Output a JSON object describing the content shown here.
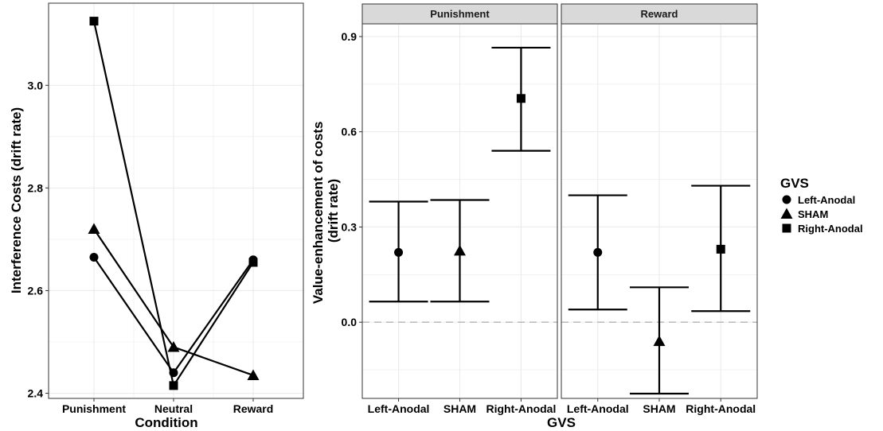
{
  "chart_data": [
    {
      "type": "line",
      "title": "",
      "xlabel": "Condition",
      "ylabel": "Interference Costs (drift rate)",
      "categories": [
        "Punishment",
        "Neutral",
        "Reward"
      ],
      "ylim": [
        2.39,
        3.16
      ],
      "yticks": [
        2.4,
        2.6,
        2.8,
        3.0
      ],
      "ytick_labels": [
        "2.4",
        "2.6",
        "2.8",
        "3.0"
      ],
      "grid": true,
      "series": [
        {
          "name": "Left-Anodal",
          "marker": "circle",
          "values": [
            2.665,
            2.44,
            2.66
          ]
        },
        {
          "name": "SHAM",
          "marker": "triangle",
          "values": [
            2.72,
            2.49,
            2.435
          ]
        },
        {
          "name": "Right-Anodal",
          "marker": "square",
          "values": [
            3.125,
            2.415,
            2.655
          ]
        }
      ]
    },
    {
      "type": "errorbar",
      "title": "",
      "xlabel": "GVS",
      "ylabel": "Value-enhancement of costs (drift rate)",
      "ylim": [
        -0.24,
        0.94
      ],
      "yticks": [
        0.0,
        0.3,
        0.6,
        0.9
      ],
      "ytick_labels": [
        "0.0",
        "0.3",
        "0.6",
        "0.9"
      ],
      "reference_line": 0.0,
      "grid": true,
      "categories": [
        "Left-Anodal",
        "SHAM",
        "Right-Anodal"
      ],
      "panels": [
        {
          "name": "Punishment",
          "points": [
            {
              "x": "Left-Anodal",
              "marker": "circle",
              "y": 0.22,
              "lower": 0.065,
              "upper": 0.38
            },
            {
              "x": "SHAM",
              "marker": "triangle",
              "y": 0.225,
              "lower": 0.065,
              "upper": 0.385
            },
            {
              "x": "Right-Anodal",
              "marker": "square",
              "y": 0.705,
              "lower": 0.54,
              "upper": 0.865
            }
          ]
        },
        {
          "name": "Reward",
          "points": [
            {
              "x": "Left-Anodal",
              "marker": "circle",
              "y": 0.22,
              "lower": 0.04,
              "upper": 0.4
            },
            {
              "x": "SHAM",
              "marker": "triangle",
              "y": -0.06,
              "lower": -0.225,
              "upper": 0.11
            },
            {
              "x": "Right-Anodal",
              "marker": "square",
              "y": 0.23,
              "lower": 0.035,
              "upper": 0.43
            }
          ]
        }
      ]
    }
  ],
  "legend": {
    "title": "GVS",
    "placement": "right",
    "items": [
      {
        "label": "Left-Anodal",
        "marker": "circle"
      },
      {
        "label": "SHAM",
        "marker": "triangle"
      },
      {
        "label": "Right-Anodal",
        "marker": "square"
      }
    ]
  },
  "colors": {
    "ink": "#000000",
    "panel_border": "#333333",
    "grid": "#ebebeb",
    "strip_fill": "#d9d9d9",
    "reference_line": "#bebebe"
  }
}
